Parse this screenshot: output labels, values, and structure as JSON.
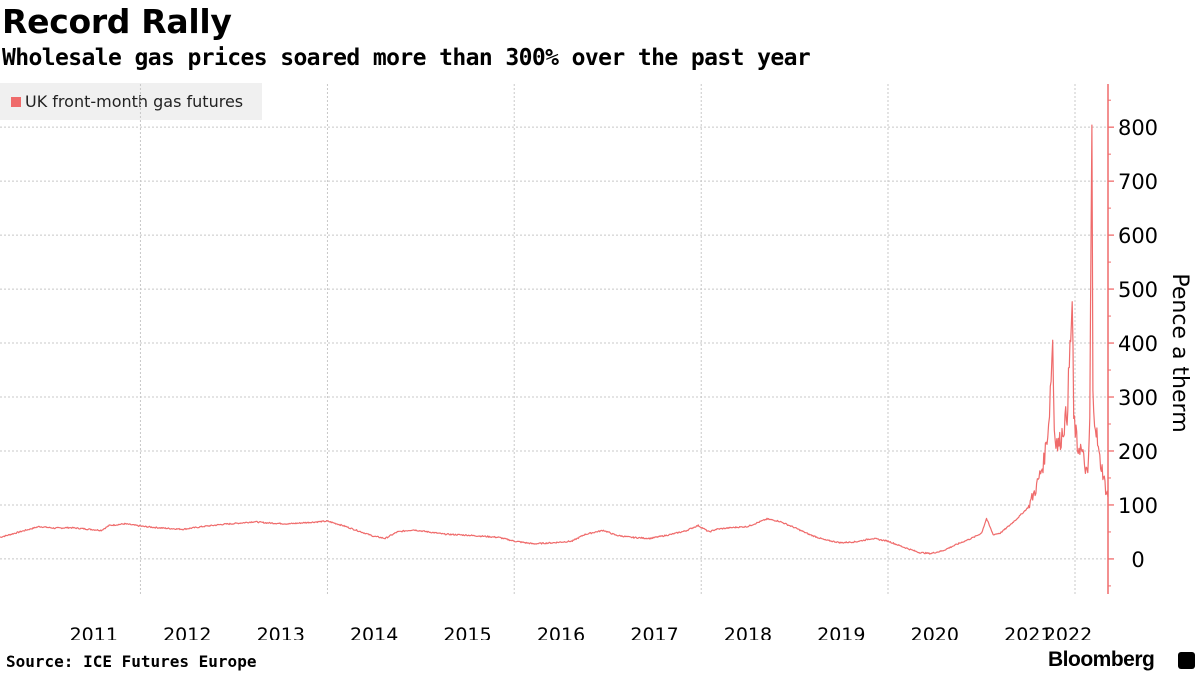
{
  "header": {
    "title": "Record Rally",
    "subtitle": "Wholesale gas prices soared more than 300% over the past year"
  },
  "footer": {
    "source": "Source: ICE Futures Europe",
    "brand": "Bloomberg",
    "brand_icon": "bloomberg-terminal-icon"
  },
  "colors": {
    "series": "#ef6b6b",
    "grid": "#c8c8c8",
    "axis": "#ef6b6b",
    "legend_bg": "#f0f0f0"
  },
  "chart_data": {
    "type": "line",
    "title": "Record Rally",
    "subtitle": "Wholesale gas prices soared more than 300% over the past year",
    "ylabel": "Pence a therm",
    "xlabel": "",
    "ylim": [
      -65,
      880
    ],
    "xlim": [
      "2010-07-01",
      "2022-05-10"
    ],
    "yticks": [
      0,
      100,
      200,
      300,
      400,
      500,
      600,
      700,
      800
    ],
    "xtick_labels": [
      "2011",
      "2012",
      "2013",
      "2014",
      "2015",
      "2016",
      "2017",
      "2018",
      "2019",
      "2020",
      "2021",
      "2022"
    ],
    "grid": true,
    "legend": {
      "position": "top-left",
      "entries": [
        "UK front-month gas futures"
      ]
    },
    "series": [
      {
        "name": "UK front-month gas futures",
        "points": [
          [
            "2010-07-01",
            40
          ],
          [
            "2010-09-15",
            50
          ],
          [
            "2010-12-01",
            60
          ],
          [
            "2011-02-01",
            57
          ],
          [
            "2011-04-01",
            58
          ],
          [
            "2011-06-15",
            55
          ],
          [
            "2011-08-01",
            53
          ],
          [
            "2011-09-01",
            62
          ],
          [
            "2011-11-01",
            65
          ],
          [
            "2012-01-15",
            60
          ],
          [
            "2012-04-01",
            57
          ],
          [
            "2012-06-15",
            55
          ],
          [
            "2012-09-01",
            60
          ],
          [
            "2012-11-15",
            64
          ],
          [
            "2013-01-15",
            66
          ],
          [
            "2013-03-20",
            69
          ],
          [
            "2013-05-01",
            67
          ],
          [
            "2013-08-01",
            65
          ],
          [
            "2013-11-01",
            68
          ],
          [
            "2014-01-01",
            70
          ],
          [
            "2014-03-01",
            62
          ],
          [
            "2014-05-01",
            52
          ],
          [
            "2014-07-01",
            42
          ],
          [
            "2014-08-15",
            38
          ],
          [
            "2014-10-01",
            50
          ],
          [
            "2014-12-01",
            54
          ],
          [
            "2015-02-01",
            50
          ],
          [
            "2015-04-01",
            46
          ],
          [
            "2015-07-01",
            44
          ],
          [
            "2015-09-01",
            42
          ],
          [
            "2015-11-01",
            40
          ],
          [
            "2016-01-01",
            33
          ],
          [
            "2016-03-15",
            28
          ],
          [
            "2016-06-01",
            30
          ],
          [
            "2016-08-15",
            33
          ],
          [
            "2016-10-01",
            45
          ],
          [
            "2016-11-15",
            50
          ],
          [
            "2016-12-15",
            53
          ],
          [
            "2017-02-01",
            44
          ],
          [
            "2017-04-01",
            40
          ],
          [
            "2017-06-15",
            38
          ],
          [
            "2017-09-01",
            45
          ],
          [
            "2017-11-01",
            52
          ],
          [
            "2017-12-20",
            62
          ],
          [
            "2018-02-01",
            50
          ],
          [
            "2018-03-01",
            55
          ],
          [
            "2018-05-01",
            58
          ],
          [
            "2018-07-01",
            60
          ],
          [
            "2018-09-15",
            74
          ],
          [
            "2018-11-01",
            70
          ],
          [
            "2019-01-01",
            58
          ],
          [
            "2019-03-01",
            45
          ],
          [
            "2019-05-01",
            35
          ],
          [
            "2019-07-01",
            30
          ],
          [
            "2019-09-01",
            32
          ],
          [
            "2019-11-01",
            38
          ],
          [
            "2020-01-01",
            33
          ],
          [
            "2020-03-01",
            22
          ],
          [
            "2020-05-01",
            12
          ],
          [
            "2020-06-15",
            10
          ],
          [
            "2020-08-01",
            15
          ],
          [
            "2020-10-01",
            28
          ],
          [
            "2020-12-01",
            40
          ],
          [
            "2021-01-01",
            48
          ],
          [
            "2021-01-20",
            75
          ],
          [
            "2021-02-15",
            45
          ],
          [
            "2021-03-15",
            48
          ],
          [
            "2021-04-15",
            60
          ],
          [
            "2021-05-20",
            75
          ],
          [
            "2021-07-01",
            95
          ],
          [
            "2021-08-01",
            130
          ],
          [
            "2021-09-01",
            180
          ],
          [
            "2021-09-20",
            250
          ],
          [
            "2021-10-06",
            405
          ],
          [
            "2021-10-12",
            240
          ],
          [
            "2021-10-25",
            210
          ],
          [
            "2021-11-05",
            220
          ],
          [
            "2021-11-20",
            250
          ],
          [
            "2021-12-01",
            270
          ],
          [
            "2021-12-21",
            470
          ],
          [
            "2021-12-27",
            260
          ],
          [
            "2022-01-05",
            230
          ],
          [
            "2022-01-10",
            205
          ],
          [
            "2022-01-20",
            210
          ],
          [
            "2022-02-01",
            190
          ],
          [
            "2022-02-20",
            150
          ],
          [
            "2022-02-28",
            260
          ],
          [
            "2022-03-08",
            800
          ],
          [
            "2022-03-12",
            300
          ],
          [
            "2022-03-25",
            240
          ],
          [
            "2022-04-05",
            190
          ],
          [
            "2022-04-20",
            160
          ],
          [
            "2022-05-01",
            130
          ],
          [
            "2022-05-10",
            115
          ]
        ]
      }
    ]
  }
}
